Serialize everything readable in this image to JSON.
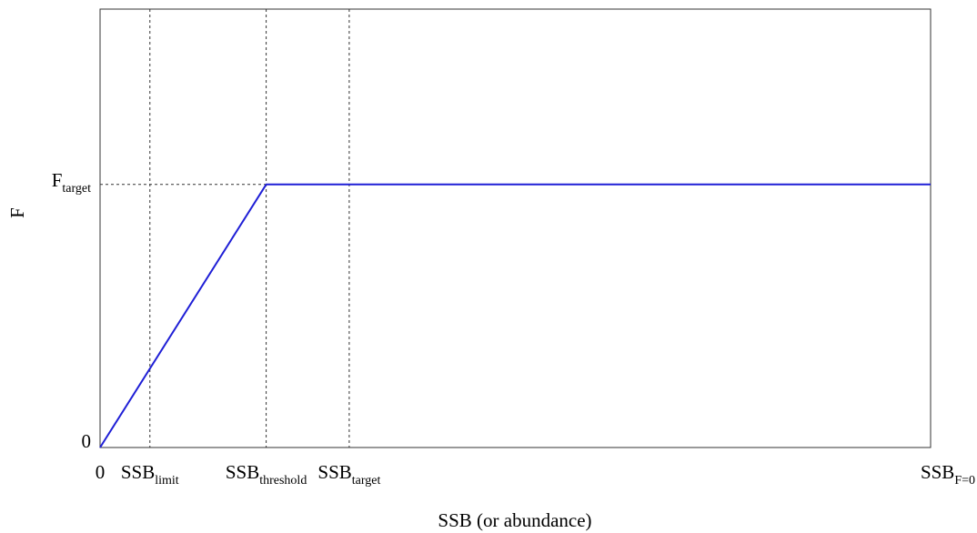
{
  "chart_data": {
    "type": "line",
    "title": "",
    "xlabel": "SSB (or abundance)",
    "ylabel": "F",
    "xlim": [
      0,
      1
    ],
    "ylim": [
      0,
      1
    ],
    "grid": false,
    "legend": "none",
    "x_ticks": [
      {
        "value": 0,
        "base": "0",
        "sub": ""
      },
      {
        "value": 0.06,
        "base": "SSB",
        "sub": "limit"
      },
      {
        "value": 0.2,
        "base": "SSB",
        "sub": "threshold"
      },
      {
        "value": 0.3,
        "base": "SSB",
        "sub": "target"
      },
      {
        "value": 1.0,
        "base": "SSB",
        "sub": "F=0"
      }
    ],
    "y_ticks": [
      {
        "value": 0,
        "base": "0",
        "sub": ""
      },
      {
        "value": 0.6,
        "base": "F",
        "sub": "target"
      }
    ],
    "reference_lines": [
      {
        "orientation": "vertical",
        "x": 0.06,
        "style": "dashed"
      },
      {
        "orientation": "vertical",
        "x": 0.2,
        "style": "dashed"
      },
      {
        "orientation": "vertical",
        "x": 0.3,
        "style": "dashed"
      },
      {
        "orientation": "horizontal",
        "y": 0.6,
        "x_to": 0.2,
        "style": "dashed"
      }
    ],
    "series": [
      {
        "x": [
          0,
          0.2,
          1.0
        ],
        "y": [
          0,
          0.6,
          0.6
        ],
        "color": "#1f1fd6"
      }
    ]
  }
}
